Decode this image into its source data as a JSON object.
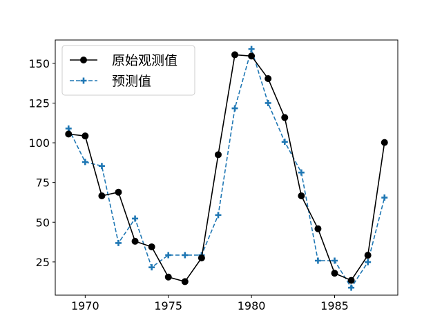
{
  "chart_data": {
    "type": "line",
    "title": "",
    "xlabel": "",
    "ylabel": "",
    "xlim": [
      1968.2,
      1988.8
    ],
    "ylim": [
      4.1,
      164.7
    ],
    "xticks": [
      1970,
      1975,
      1980,
      1985
    ],
    "yticks": [
      25,
      50,
      75,
      100,
      125,
      150
    ],
    "grid": false,
    "legend_position": "upper-left",
    "x": [
      1969,
      1970,
      1971,
      1972,
      1973,
      1974,
      1975,
      1976,
      1977,
      1978,
      1979,
      1980,
      1981,
      1982,
      1983,
      1984,
      1985,
      1986,
      1987,
      1988
    ],
    "series": [
      {
        "name": "原始观测值",
        "color": "#000000",
        "linestyle": "solid",
        "marker": "circle",
        "values": [
          105.5,
          104.3,
          66.6,
          68.9,
          38.0,
          34.5,
          15.5,
          12.6,
          27.5,
          92.5,
          155.4,
          154.6,
          140.4,
          115.9,
          66.6,
          45.9,
          17.9,
          13.4,
          29.2,
          100.2
        ]
      },
      {
        "name": "预测值",
        "color": "#1f77b4",
        "linestyle": "dashed",
        "marker": "plus",
        "values": [
          109.0,
          87.9,
          85.4,
          36.9,
          52.3,
          21.6,
          29.3,
          29.3,
          29.3,
          54.5,
          121.7,
          159.0,
          125.0,
          100.6,
          81.3,
          25.8,
          25.8,
          8.8,
          24.9,
          65.5
        ]
      }
    ]
  }
}
